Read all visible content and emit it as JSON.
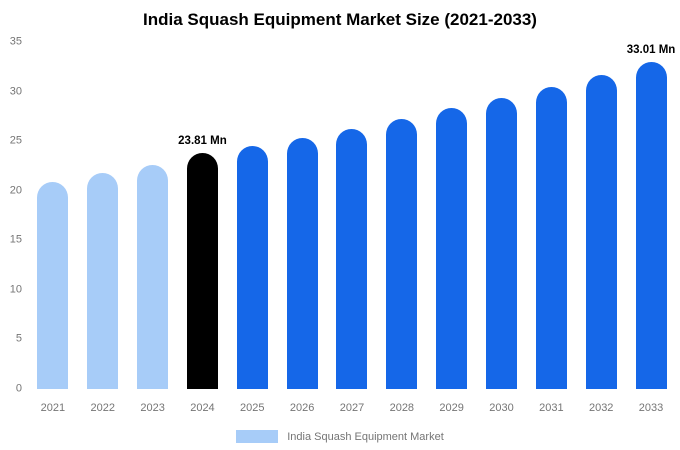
{
  "title": "India Squash Equipment Market Size (2021-2033)",
  "legend": {
    "label": "India Squash Equipment Market",
    "swatch_color": "#A7CCF8"
  },
  "colors": {
    "historical_bar": "#A7CCF8",
    "base_year_bar": "#000000",
    "forecast_bar": "#1567E8",
    "axis_text": "#757575",
    "title_text": "#000000"
  },
  "chart_data": {
    "type": "bar",
    "title": "India Squash Equipment Market Size (2021-2033)",
    "categories": [
      "2021",
      "2022",
      "2023",
      "2024",
      "2025",
      "2026",
      "2027",
      "2028",
      "2029",
      "2030",
      "2031",
      "2032",
      "2033"
    ],
    "values": [
      20.9,
      21.8,
      22.6,
      23.81,
      24.5,
      25.3,
      26.2,
      27.2,
      28.3,
      29.4,
      30.5,
      31.7,
      33.01
    ],
    "bar_colors": [
      "#A7CCF8",
      "#A7CCF8",
      "#A7CCF8",
      "#000000",
      "#1567E8",
      "#1567E8",
      "#1567E8",
      "#1567E8",
      "#1567E8",
      "#1567E8",
      "#1567E8",
      "#1567E8",
      "#1567E8"
    ],
    "annotations": [
      {
        "category": "2024",
        "text": "23.81 Mn"
      },
      {
        "category": "2033",
        "text": "33.01 Mn"
      }
    ],
    "xlabel": "",
    "ylabel": "",
    "ylim": [
      0,
      35
    ],
    "yticks": [
      0,
      5,
      10,
      15,
      20,
      25,
      30,
      35
    ],
    "grid": false,
    "legend_position": "bottom",
    "legend_entries": [
      "India Squash Equipment Market"
    ]
  }
}
